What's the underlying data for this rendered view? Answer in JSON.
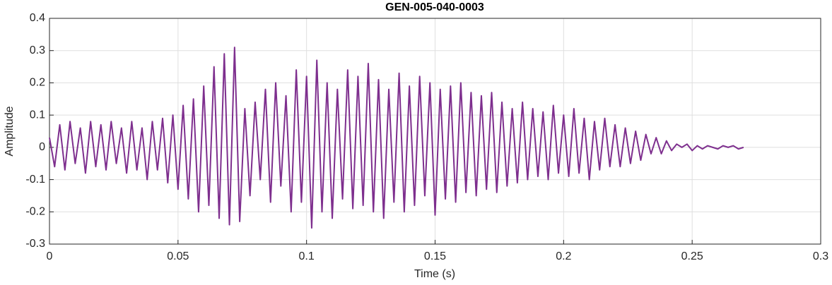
{
  "chart_data": {
    "type": "line",
    "title": "GEN-005-040-0003",
    "xlabel": "Time (s)",
    "ylabel": "Amplitude",
    "color": "#7e2f8e",
    "grid": true,
    "xlim": [
      0,
      0.3
    ],
    "xticks": [
      0,
      0.05,
      0.1,
      0.15,
      0.2,
      0.25,
      0.3
    ],
    "ylim": [
      -0.3,
      0.4
    ],
    "yticks": [
      -0.3,
      -0.2,
      -0.1,
      0,
      0.1,
      0.2,
      0.3,
      0.4
    ],
    "x": [
      0,
      0.002,
      0.004,
      0.006,
      0.008,
      0.01,
      0.012,
      0.014,
      0.016,
      0.018,
      0.02,
      0.022,
      0.024,
      0.026,
      0.028,
      0.03,
      0.032,
      0.034,
      0.036,
      0.038,
      0.04,
      0.042,
      0.044,
      0.046,
      0.048,
      0.05,
      0.052,
      0.054,
      0.056,
      0.058,
      0.06,
      0.062,
      0.064,
      0.066,
      0.068,
      0.07,
      0.072,
      0.074,
      0.076,
      0.078,
      0.08,
      0.082,
      0.084,
      0.086,
      0.088,
      0.09,
      0.092,
      0.094,
      0.096,
      0.098,
      0.1,
      0.102,
      0.104,
      0.106,
      0.108,
      0.11,
      0.112,
      0.114,
      0.116,
      0.118,
      0.12,
      0.122,
      0.124,
      0.126,
      0.128,
      0.13,
      0.132,
      0.134,
      0.136,
      0.138,
      0.14,
      0.142,
      0.144,
      0.146,
      0.148,
      0.15,
      0.152,
      0.154,
      0.156,
      0.158,
      0.16,
      0.162,
      0.164,
      0.166,
      0.168,
      0.17,
      0.172,
      0.174,
      0.176,
      0.178,
      0.18,
      0.182,
      0.184,
      0.186,
      0.188,
      0.19,
      0.192,
      0.194,
      0.196,
      0.198,
      0.2,
      0.202,
      0.204,
      0.206,
      0.208,
      0.21,
      0.212,
      0.214,
      0.216,
      0.218,
      0.22,
      0.222,
      0.224,
      0.226,
      0.228,
      0.23,
      0.232,
      0.234,
      0.236,
      0.238,
      0.24,
      0.242,
      0.244,
      0.246,
      0.248,
      0.25,
      0.252,
      0.254,
      0.256,
      0.258,
      0.26,
      0.262,
      0.264,
      0.266,
      0.268,
      0.27
    ],
    "values": [
      0.03,
      -0.06,
      0.07,
      -0.07,
      0.08,
      -0.05,
      0.06,
      -0.08,
      0.08,
      -0.06,
      0.07,
      -0.07,
      0.08,
      -0.05,
      0.06,
      -0.08,
      0.08,
      -0.07,
      0.06,
      -0.1,
      0.08,
      -0.07,
      0.09,
      -0.11,
      0.1,
      -0.13,
      0.13,
      -0.16,
      0.15,
      -0.2,
      0.19,
      -0.18,
      0.25,
      -0.22,
      0.29,
      -0.24,
      0.31,
      -0.23,
      0.12,
      -0.15,
      0.14,
      -0.1,
      0.18,
      -0.17,
      0.2,
      -0.12,
      0.16,
      -0.2,
      0.24,
      -0.17,
      0.22,
      -0.25,
      0.27,
      -0.2,
      0.2,
      -0.22,
      0.18,
      -0.16,
      0.24,
      -0.19,
      0.22,
      -0.18,
      0.26,
      -0.2,
      0.21,
      -0.22,
      0.18,
      -0.17,
      0.23,
      -0.2,
      0.19,
      -0.18,
      0.22,
      -0.15,
      0.2,
      -0.21,
      0.18,
      -0.16,
      0.19,
      -0.17,
      0.2,
      -0.14,
      0.17,
      -0.15,
      0.16,
      -0.13,
      0.17,
      -0.14,
      0.14,
      -0.12,
      0.12,
      -0.11,
      0.14,
      -0.1,
      0.12,
      -0.09,
      0.11,
      -0.1,
      0.13,
      -0.08,
      0.1,
      -0.09,
      0.12,
      -0.08,
      0.09,
      -0.1,
      0.08,
      -0.07,
      0.09,
      -0.06,
      0.07,
      -0.06,
      0.06,
      -0.05,
      0.05,
      -0.04,
      0.04,
      -0.02,
      0.03,
      -0.02,
      0.02,
      -0.01,
      0.01,
      0,
      0.01,
      -0.01,
      0.005,
      -0.005,
      0.005,
      0,
      -0.005,
      0.005,
      0,
      0.005,
      -0.005,
      0
    ]
  }
}
